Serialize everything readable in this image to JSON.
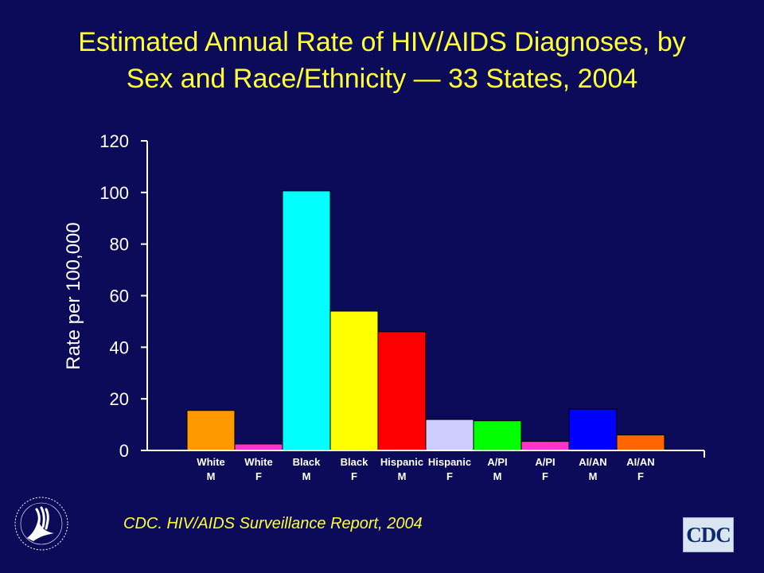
{
  "title_line1": "Estimated Annual Rate of HIV/AIDS Diagnoses, by",
  "title_line2": "Sex and Race/Ethnicity — 33 States, 2004",
  "source": "CDC. HIV/AIDS Surveillance Report, 2004",
  "logos": {
    "hhs_icon": "hhs-eagle-seal-icon",
    "cdc_text": "CDC"
  },
  "colors": {
    "background": "#0b0b5a",
    "title": "#ffff33",
    "axis": "#ffffff"
  },
  "chart_data": {
    "type": "bar",
    "title": "Estimated Annual Rate of HIV/AIDS Diagnoses, by Sex and Race/Ethnicity — 33 States, 2004",
    "xlabel": "",
    "ylabel": "Rate per 100,000",
    "ylim": [
      0,
      120
    ],
    "yticks": [
      0,
      20,
      40,
      60,
      80,
      100,
      120
    ],
    "grid": false,
    "categories": [
      [
        "White",
        "M"
      ],
      [
        "White",
        "F"
      ],
      [
        "Black",
        "M"
      ],
      [
        "Black",
        "F"
      ],
      [
        "Hispanic",
        "M"
      ],
      [
        "Hispanic",
        "F"
      ],
      [
        "A/PI",
        "M"
      ],
      [
        "A/PI",
        "F"
      ],
      [
        "AI/AN",
        "M"
      ],
      [
        "AI/AN",
        "F"
      ]
    ],
    "values": [
      15.5,
      2.5,
      100.6,
      54,
      46,
      12,
      11.5,
      3.5,
      16,
      6
    ],
    "bar_colors": [
      "#ff9900",
      "#ff33cc",
      "#00ffff",
      "#ffff00",
      "#ff0000",
      "#ccccff",
      "#00ff00",
      "#ff33cc",
      "#0000ff",
      "#ff6600"
    ]
  }
}
